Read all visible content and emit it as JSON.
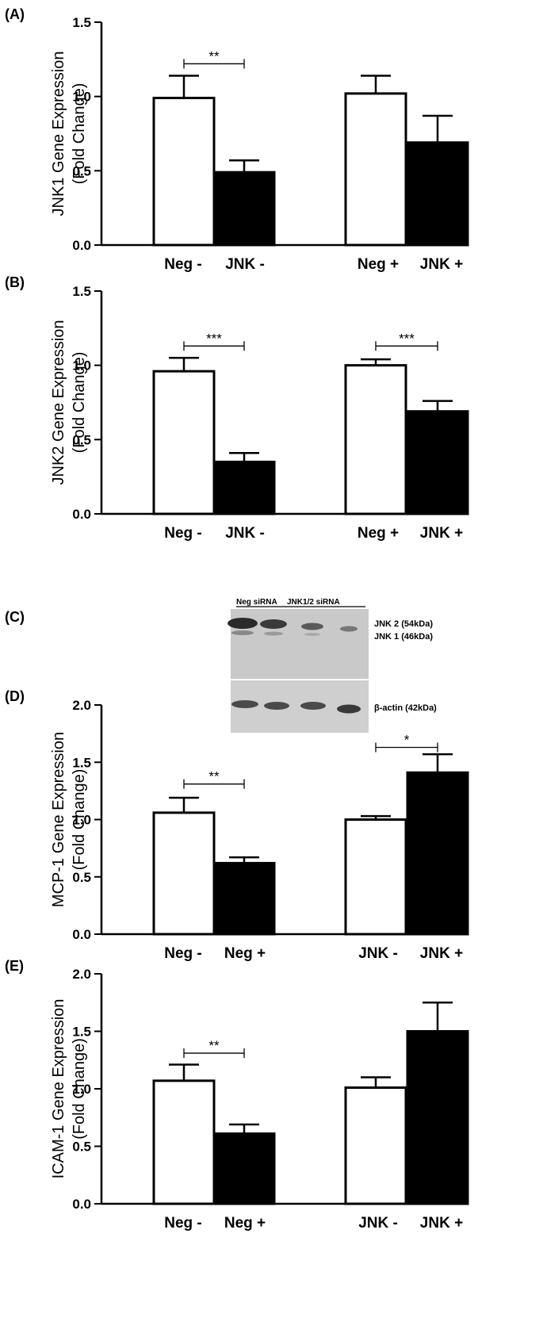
{
  "chart_data": [
    {
      "panel_label": "(A)",
      "type": "bar",
      "ylabel_line1": "JNK1 Gene Expression",
      "ylabel_line2": "(Fold Change)",
      "ylim": [
        0,
        1.5
      ],
      "yticks": [
        "0.0",
        "0.5",
        "1.0",
        "1.5"
      ],
      "group_labels": [
        [
          "Neg -",
          "JNK -"
        ],
        [
          "Neg +",
          "JNK +"
        ]
      ],
      "bars": [
        {
          "fill": "open",
          "value": 0.99,
          "error": 0.15
        },
        {
          "fill": "solid",
          "value": 0.49,
          "error": 0.08
        },
        {
          "fill": "open",
          "value": 1.02,
          "error": 0.12
        },
        {
          "fill": "solid",
          "value": 0.69,
          "error": 0.18
        }
      ],
      "significance": [
        {
          "bars": [
            0,
            1
          ],
          "label": "**",
          "y": 1.22
        }
      ]
    },
    {
      "panel_label": "(B)",
      "type": "bar",
      "ylabel_line1": "JNK2 Gene Expression",
      "ylabel_line2": "(Fold Change)",
      "ylim": [
        0,
        1.5
      ],
      "yticks": [
        "0.0",
        "0.5",
        "1.0",
        "1.5"
      ],
      "group_labels": [
        [
          "Neg -",
          "JNK -"
        ],
        [
          "Neg +",
          "JNK +"
        ]
      ],
      "bars": [
        {
          "fill": "open",
          "value": 0.96,
          "error": 0.09
        },
        {
          "fill": "solid",
          "value": 0.35,
          "error": 0.06
        },
        {
          "fill": "open",
          "value": 1.0,
          "error": 0.04
        },
        {
          "fill": "solid",
          "value": 0.69,
          "error": 0.07
        }
      ],
      "significance": [
        {
          "bars": [
            0,
            1
          ],
          "label": "***",
          "y": 1.13
        },
        {
          "bars": [
            2,
            3
          ],
          "label": "***",
          "y": 1.13
        }
      ]
    },
    {
      "panel_label": "(D)",
      "type": "bar",
      "ylabel_line1": "MCP-1 Gene Expression",
      "ylabel_line2": "(Fold Change)",
      "ylim": [
        0,
        2.0
      ],
      "yticks": [
        "0.0",
        "0.5",
        "1.0",
        "1.5",
        "2.0"
      ],
      "group_labels": [
        [
          "Neg -",
          "Neg +"
        ],
        [
          "JNK -",
          "JNK +"
        ]
      ],
      "bars": [
        {
          "fill": "open",
          "value": 1.06,
          "error": 0.13
        },
        {
          "fill": "solid",
          "value": 0.62,
          "error": 0.05
        },
        {
          "fill": "open",
          "value": 1.0,
          "error": 0.03
        },
        {
          "fill": "solid",
          "value": 1.41,
          "error": 0.16
        }
      ],
      "significance": [
        {
          "bars": [
            0,
            1
          ],
          "label": "**",
          "y": 1.31
        },
        {
          "bars": [
            2,
            3
          ],
          "label": "*",
          "y": 1.63
        }
      ]
    },
    {
      "panel_label": "(E)",
      "type": "bar",
      "ylabel_line1": "ICAM-1 Gene Expression",
      "ylabel_line2": "(Fold Change)",
      "ylim": [
        0,
        2.0
      ],
      "yticks": [
        "0.0",
        "0.5",
        "1.0",
        "1.5",
        "2.0"
      ],
      "group_labels": [
        [
          "Neg -",
          "Neg +"
        ],
        [
          "JNK -",
          "JNK +"
        ]
      ],
      "bars": [
        {
          "fill": "open",
          "value": 1.07,
          "error": 0.14
        },
        {
          "fill": "solid",
          "value": 0.61,
          "error": 0.08
        },
        {
          "fill": "open",
          "value": 1.01,
          "error": 0.09
        },
        {
          "fill": "solid",
          "value": 1.5,
          "error": 0.25
        }
      ],
      "significance": [
        {
          "bars": [
            0,
            1
          ],
          "label": "**",
          "y": 1.31
        }
      ]
    }
  ],
  "blot": {
    "panel_label": "(C)",
    "header_left": "Neg siRNA",
    "header_right": "JNK1/2 siRNA",
    "lane_signs": [
      "-",
      "+",
      "-",
      "+"
    ],
    "label_jnk2": "JNK 2 (54kDa)",
    "label_jnk1": "JNK 1 (46kDa)",
    "label_actin": "β-actin (42kDa)"
  }
}
